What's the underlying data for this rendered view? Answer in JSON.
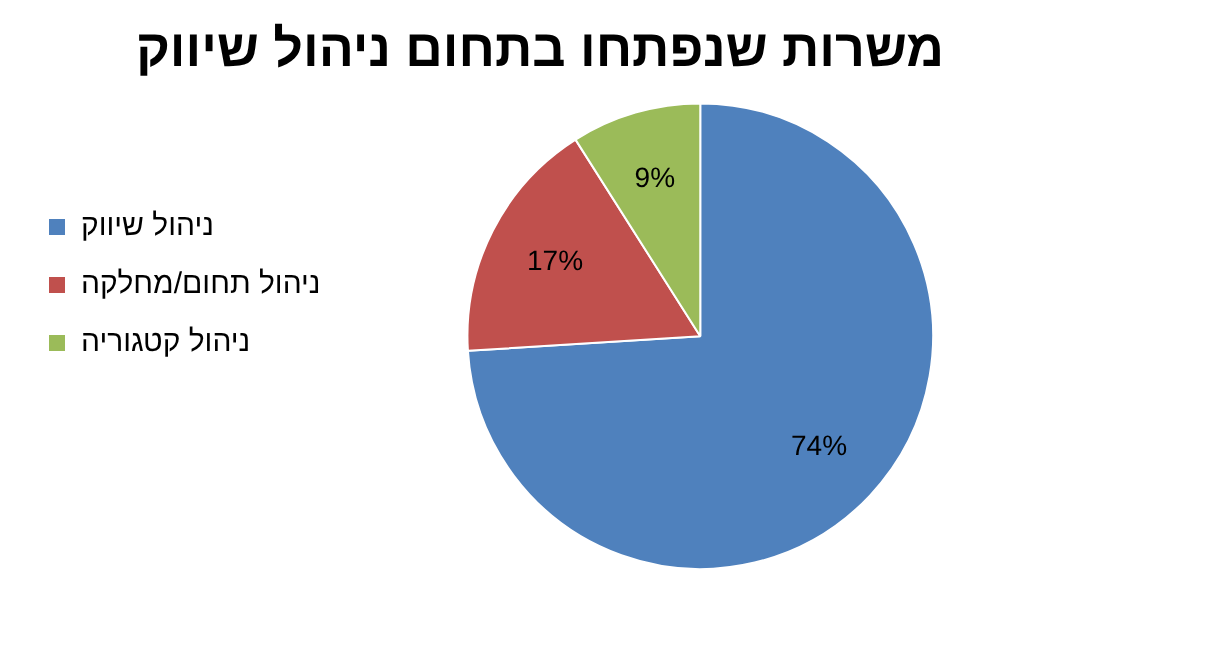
{
  "chart_data": {
    "type": "pie",
    "title": "משרות שנפתחו בתחום ניהול שיווק",
    "categories": [
      "ניהול שיווק",
      "ניהול תחום/מחלקה",
      "ניהול קטגוריה"
    ],
    "values": [
      74,
      17,
      9
    ],
    "colors": [
      "#4f81bd",
      "#c0504d",
      "#9bbb59"
    ],
    "value_labels": [
      "74%",
      "17%",
      "9%"
    ],
    "legend": "left"
  }
}
